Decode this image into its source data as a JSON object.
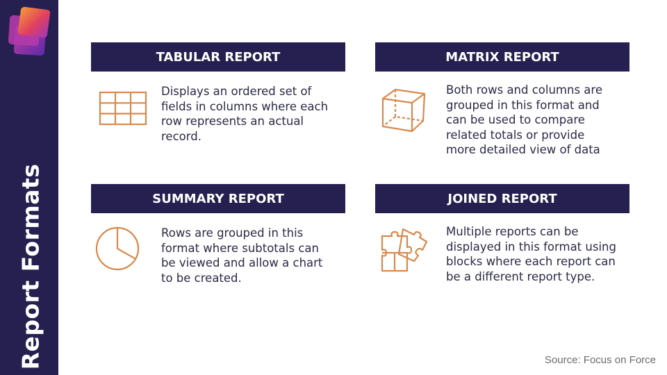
{
  "sidebar": {
    "title": "Report Formats"
  },
  "cards": [
    {
      "heading": "TABULAR REPORT",
      "icon": "table-grid-icon",
      "lines": [
        "Displays an ordered set of",
        "fields in columns where each",
        "row represents an actual",
        "record."
      ]
    },
    {
      "heading": "MATRIX REPORT",
      "icon": "cube-icon",
      "lines": [
        "Both rows and columns are",
        "grouped in this format and",
        "can be used to compare",
        "related totals or provide",
        "more detailed view of data"
      ]
    },
    {
      "heading": "SUMMARY REPORT",
      "icon": "pie-chart-icon",
      "lines": [
        "Rows are grouped in this",
        "format where subtotals can",
        "be viewed and allow a chart",
        "to be created."
      ]
    },
    {
      "heading": "JOINED REPORT",
      "icon": "puzzle-icon",
      "lines": [
        "Multiple reports can be",
        "displayed in this format using",
        "blocks where each report can",
        "be a different report type."
      ]
    }
  ],
  "footer": {
    "source": "Source: Focus on Force"
  },
  "colors": {
    "navy": "#25204f",
    "accent_orange": "#d9884a",
    "logo_gradient": [
      "#f7a531",
      "#e0405f",
      "#7b2fbf"
    ]
  }
}
